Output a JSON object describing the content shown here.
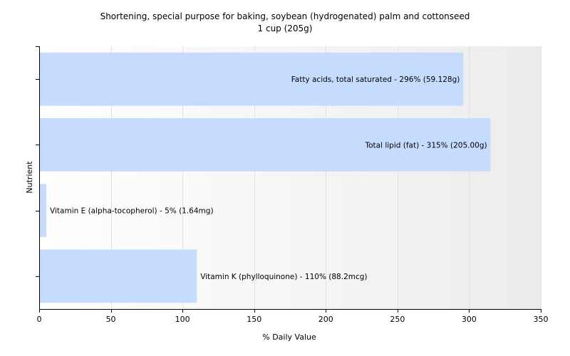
{
  "chart_data": {
    "type": "bar",
    "orientation": "horizontal",
    "title": "Shortening, special purpose for baking, soybean (hydrogenated) palm and cottonseed",
    "subtitle": "1 cup (205g)",
    "xlabel": "% Daily Value",
    "ylabel": "Nutrient",
    "xlim": [
      0,
      350
    ],
    "xticks": [
      0,
      50,
      100,
      150,
      200,
      250,
      300,
      350
    ],
    "grid": true,
    "bar_color": "#c5dcff",
    "categories": [
      "Fatty acids, total saturated",
      "Total lipid (fat)",
      "Vitamin E (alpha-tocopherol)",
      "Vitamin K (phylloquinone)"
    ],
    "values": [
      296,
      315,
      5,
      110
    ],
    "data_labels": [
      "Fatty acids, total saturated - 296% (59.128g)",
      "Total lipid (fat) - 315% (205.00g)",
      "Vitamin E (alpha-tocopherol) - 5% (1.64mg)",
      "Vitamin K (phylloquinone) - 110% (88.2mcg)"
    ]
  }
}
